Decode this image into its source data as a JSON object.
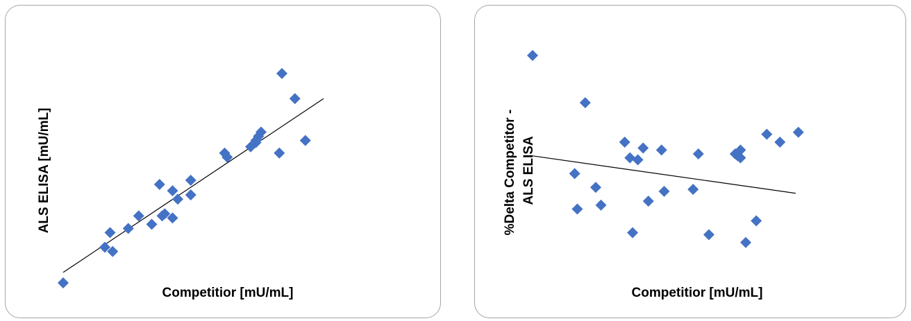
{
  "colors": {
    "marker": "#4472C4",
    "trendline": "#000000",
    "border": "#a6a6a6"
  },
  "chart_data": [
    {
      "type": "scatter",
      "title": "",
      "xlabel": "Competitior [mU/mL]",
      "ylabel": "ALS ELISA [mU/mL]",
      "axes_visible": false,
      "grid": false,
      "legend": "none",
      "xlim": [
        0,
        100
      ],
      "ylim": [
        0,
        100
      ],
      "trendline": {
        "type": "linear",
        "x": [
          0,
          100
        ],
        "y": [
          5,
          88
        ]
      },
      "series": [
        {
          "marker": "diamond",
          "x": [
            0,
            16,
            18,
            19,
            25,
            29,
            34,
            37,
            38,
            39,
            42,
            42,
            44,
            49,
            49,
            62,
            63,
            72,
            74,
            74,
            75,
            76,
            83,
            84,
            89,
            93
          ],
          "y": [
            0,
            17,
            24,
            15,
            26,
            32,
            28,
            47,
            32,
            33,
            44,
            31,
            40,
            49,
            42,
            62,
            60,
            65,
            68,
            67,
            70,
            72,
            62,
            100,
            88,
            68
          ]
        }
      ]
    },
    {
      "type": "scatter",
      "title": "",
      "xlabel": "Competitior [mU/mL]",
      "ylabel_lines": [
        "%Delta Competitor -",
        "ALS ELISA"
      ],
      "axes_visible": false,
      "grid": false,
      "legend": "none",
      "xlim": [
        0,
        100
      ],
      "ylim": [
        0,
        100
      ],
      "trendline": {
        "type": "linear",
        "x": [
          0,
          100
        ],
        "y": [
          49,
          30
        ]
      },
      "series": [
        {
          "marker": "diamond",
          "x": [
            0,
            16,
            17,
            20,
            24,
            26,
            35,
            37,
            38,
            40,
            42,
            44,
            49,
            50,
            61,
            63,
            67,
            77,
            78,
            79,
            79,
            81,
            85,
            89,
            94,
            101
          ],
          "y": [
            100,
            40,
            22,
            76,
            33,
            24,
            56,
            48,
            10,
            47,
            53,
            26,
            52,
            31,
            32,
            50,
            9,
            50,
            49,
            52,
            48,
            5,
            16,
            60,
            56,
            61
          ]
        }
      ]
    }
  ]
}
